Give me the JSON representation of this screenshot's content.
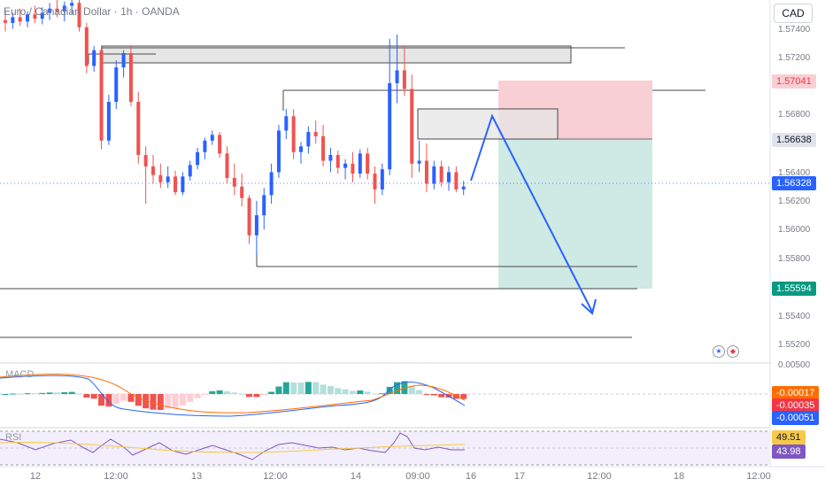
{
  "header": {
    "symbol_text": "Euro / Canadian Dollar · 1h · OANDA",
    "currency_button": "CAD"
  },
  "colors": {
    "up": "#2962ff",
    "down": "#ef5350",
    "up_hist": "#26a69a",
    "up_hist_light": "#b2dfdb",
    "down_hist_light": "#ffcdd2",
    "stop_zone": "#f7cfd4",
    "target_zone": "#cfe9e4",
    "arrow": "#2962ff",
    "macd_line": "#2962ff",
    "signal_line": "#ff6d00",
    "rsi_line": "#7e57c2",
    "rsi_ma": "#f7c948"
  },
  "price_axis": {
    "ticks": [
      "1.57400",
      "1.57200",
      "1.56800",
      "1.56400",
      "1.56200",
      "1.56000",
      "1.55800",
      "1.55400",
      "1.55200"
    ],
    "labels": [
      {
        "text": "1.57041",
        "kind": "red"
      },
      {
        "text": "1.56638",
        "kind": "gray"
      },
      {
        "text": "1.56328",
        "kind": "blue"
      },
      {
        "text": "1.55594",
        "kind": "green"
      }
    ]
  },
  "macd": {
    "label": "MACD",
    "zero_tick": "0.00500",
    "values": [
      "-0.00017",
      "-0.00035",
      "-0.00051"
    ]
  },
  "rsi": {
    "label": "RSI",
    "values": [
      "49.51",
      "43.98"
    ]
  },
  "time_axis": [
    "12",
    "12:00",
    "13",
    "12:00",
    "14",
    "09:00",
    "16",
    "17",
    "12:00",
    "18",
    "12:00"
  ],
  "chart_data": {
    "type": "candlestick",
    "title": "Euro / Canadian Dollar · 1h · OANDA",
    "ylim": [
      1.5511,
      1.5764
    ],
    "x_axis_ticks": [
      "12",
      "12:00",
      "13",
      "12:00",
      "14",
      "09:00",
      "16",
      "17",
      "12:00",
      "18",
      "12:00"
    ],
    "candles_ohlc": [
      [
        1.575,
        1.5757,
        1.5742,
        1.5748
      ],
      [
        1.5748,
        1.5755,
        1.5744,
        1.5752
      ],
      [
        1.5752,
        1.5758,
        1.5746,
        1.5749
      ],
      [
        1.5749,
        1.5756,
        1.5745,
        1.5754
      ],
      [
        1.5754,
        1.576,
        1.5748,
        1.5751
      ],
      [
        1.5751,
        1.5759,
        1.5747,
        1.5755
      ],
      [
        1.5755,
        1.5762,
        1.575,
        1.5758
      ],
      [
        1.5758,
        1.5764,
        1.5752,
        1.5756
      ],
      [
        1.5756,
        1.5763,
        1.5749,
        1.576
      ],
      [
        1.576,
        1.5766,
        1.5754,
        1.5762
      ],
      [
        1.5762,
        1.5766,
        1.5742,
        1.5745
      ],
      [
        1.5745,
        1.5748,
        1.5713,
        1.5718
      ],
      [
        1.5718,
        1.5732,
        1.5714,
        1.5729
      ],
      [
        1.5729,
        1.5732,
        1.566,
        1.5666
      ],
      [
        1.5666,
        1.5698,
        1.5663,
        1.5693
      ],
      [
        1.5693,
        1.5722,
        1.5688,
        1.5717
      ],
      [
        1.5717,
        1.5729,
        1.571,
        1.5727
      ],
      [
        1.5727,
        1.5732,
        1.569,
        1.5693
      ],
      [
        1.5693,
        1.57,
        1.565,
        1.5656
      ],
      [
        1.5656,
        1.5662,
        1.5622,
        1.5648
      ],
      [
        1.5648,
        1.5656,
        1.5636,
        1.5642
      ],
      [
        1.5642,
        1.565,
        1.5633,
        1.5637
      ],
      [
        1.5637,
        1.5648,
        1.5633,
        1.5641
      ],
      [
        1.5641,
        1.5645,
        1.5628,
        1.563
      ],
      [
        1.563,
        1.5644,
        1.5628,
        1.5641
      ],
      [
        1.5641,
        1.5652,
        1.5638,
        1.5649
      ],
      [
        1.5649,
        1.5661,
        1.5646,
        1.5658
      ],
      [
        1.5658,
        1.5668,
        1.5653,
        1.5666
      ],
      [
        1.5666,
        1.5673,
        1.5663,
        1.567
      ],
      [
        1.567,
        1.5672,
        1.5654,
        1.5657
      ],
      [
        1.5657,
        1.5662,
        1.5636,
        1.564
      ],
      [
        1.564,
        1.565,
        1.5628,
        1.5634
      ],
      [
        1.5634,
        1.5643,
        1.562,
        1.5626
      ],
      [
        1.5626,
        1.5628,
        1.5594,
        1.56
      ],
      [
        1.56,
        1.5624,
        1.5586,
        1.5614
      ],
      [
        1.5614,
        1.5633,
        1.5604,
        1.5628
      ],
      [
        1.5628,
        1.565,
        1.5622,
        1.5644
      ],
      [
        1.5644,
        1.5677,
        1.564,
        1.5673
      ],
      [
        1.5673,
        1.5688,
        1.5667,
        1.5683
      ],
      [
        1.5683,
        1.5688,
        1.5653,
        1.5658
      ],
      [
        1.5658,
        1.5665,
        1.565,
        1.5662
      ],
      [
        1.5662,
        1.5676,
        1.5657,
        1.5672
      ],
      [
        1.5672,
        1.568,
        1.5664,
        1.5669
      ],
      [
        1.5669,
        1.5677,
        1.5648,
        1.5652
      ],
      [
        1.5652,
        1.5661,
        1.5644,
        1.5656
      ],
      [
        1.5656,
        1.5659,
        1.5643,
        1.5647
      ],
      [
        1.5647,
        1.5653,
        1.5639,
        1.565
      ],
      [
        1.565,
        1.5658,
        1.5637,
        1.5643
      ],
      [
        1.5643,
        1.566,
        1.564,
        1.5657
      ],
      [
        1.5657,
        1.5661,
        1.5639,
        1.5643
      ],
      [
        1.5643,
        1.5648,
        1.5622,
        1.5632
      ],
      [
        1.5632,
        1.565,
        1.5628,
        1.5646
      ],
      [
        1.5646,
        1.5737,
        1.5642,
        1.5706
      ],
      [
        1.5706,
        1.574,
        1.5692,
        1.5715
      ],
      [
        1.5715,
        1.5732,
        1.5697,
        1.5702
      ],
      [
        1.5702,
        1.5712,
        1.564,
        1.565
      ],
      [
        1.565,
        1.5666,
        1.5644,
        1.5652
      ],
      [
        1.5652,
        1.5664,
        1.563,
        1.5636
      ],
      [
        1.5636,
        1.5652,
        1.5632,
        1.5648
      ],
      [
        1.5648,
        1.5652,
        1.5634,
        1.5637
      ],
      [
        1.5637,
        1.5648,
        1.5631,
        1.5644
      ],
      [
        1.5644,
        1.5648,
        1.563,
        1.5632
      ],
      [
        1.5632,
        1.5638,
        1.5628,
        1.5634
      ]
    ],
    "price_levels": [
      1.57041,
      1.56638,
      1.56328,
      1.55594
    ],
    "macd_values": [
      -0.00017,
      -0.00035,
      -0.00051
    ],
    "rsi_values": [
      49.51,
      43.98
    ]
  }
}
